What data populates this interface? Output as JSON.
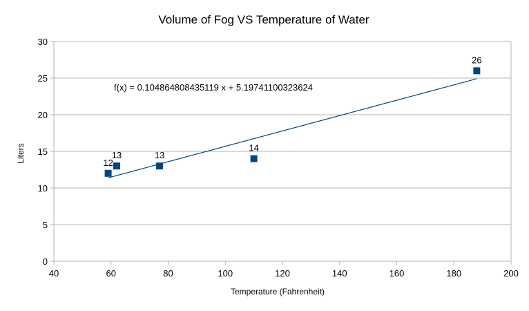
{
  "chart_data": {
    "type": "scatter",
    "title": "Volume of Fog VS Temperature of Water",
    "xlabel": "Temperature (Fahrenheit)",
    "ylabel": "Liters",
    "xlim": [
      40,
      200
    ],
    "ylim": [
      0,
      30
    ],
    "x_ticks": [
      40,
      60,
      80,
      100,
      120,
      140,
      160,
      180,
      200
    ],
    "y_ticks": [
      0,
      5,
      10,
      15,
      20,
      25,
      30
    ],
    "grid": "horizontal",
    "legend": "none",
    "series": [
      {
        "name": "Liters",
        "color": "#004586",
        "marker": "square",
        "points": [
          {
            "x": 59,
            "y": 12,
            "label": "12"
          },
          {
            "x": 62,
            "y": 13,
            "label": "13"
          },
          {
            "x": 77,
            "y": 13,
            "label": "13"
          },
          {
            "x": 110,
            "y": 14,
            "label": "14"
          },
          {
            "x": 188,
            "y": 26,
            "label": "26"
          }
        ]
      }
    ],
    "trendline": {
      "type": "linear",
      "slope": 0.104864808435119,
      "intercept": 5.19741100323624,
      "x_range": [
        59,
        188
      ],
      "color": "#004586",
      "equation": "f(x) = 0.104864808435119 x + 5.19741100323624"
    }
  }
}
